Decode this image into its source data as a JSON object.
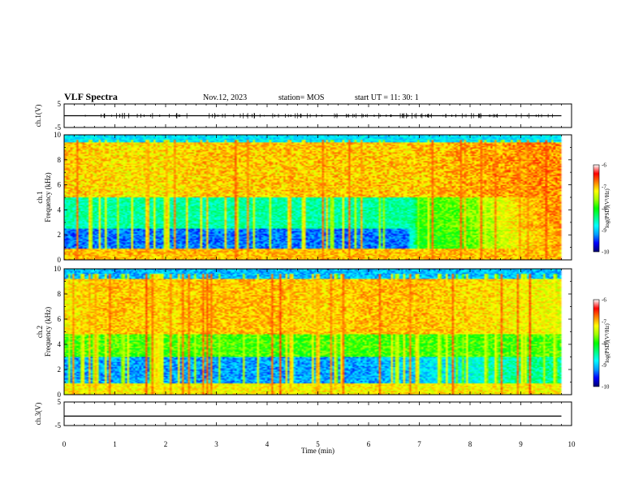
{
  "header": {
    "title": "VLF Spectra",
    "date": "Nov.12, 2023",
    "station": "station= MOS",
    "start": "start  UT =   11: 30: 1"
  },
  "colors": {
    "colormap": [
      "#000070",
      "#0000ff",
      "#00a0ff",
      "#00ffff",
      "#00ff80",
      "#00ff00",
      "#a0ff00",
      "#ffff00",
      "#ff8000",
      "#ff0000",
      "#ffffff"
    ]
  },
  "chart_data": [
    {
      "type": "line",
      "panel": "ch.1 waveform",
      "ylabel": "ch.1(V)",
      "ylim": [
        -5,
        5
      ],
      "yticks": [
        "5",
        "-5"
      ],
      "xlim": [
        0,
        10
      ],
      "series": [
        {
          "x": [
            0,
            9.8
          ],
          "values": [
            0,
            0
          ]
        }
      ],
      "grid": false
    },
    {
      "type": "heatmap",
      "panel": "ch.1 spectrogram",
      "ylabel": "ch.1 Frequency (kHz)",
      "ylim": [
        0,
        10
      ],
      "yticks": [
        "0",
        "2",
        "4",
        "6",
        "8",
        "10"
      ],
      "xlim": [
        0,
        10
      ],
      "data_extent_min": 9.8,
      "colorbar": {
        "label": "log(PSD)(V²/Hz)",
        "range": [
          -10,
          -6
        ],
        "ticks": [
          "-6",
          "-7",
          "-8",
          "-9",
          "-10"
        ]
      },
      "time_profile": {
        "x": [
          0,
          1,
          2,
          3,
          4,
          5,
          6,
          6.8,
          7,
          8,
          9,
          9.8
        ],
        "mid_band_logpsd": [
          -8.9,
          -8.9,
          -8.9,
          -8.9,
          -8.9,
          -8.9,
          -8.9,
          -8.9,
          -8.0,
          -7.8,
          -7.2,
          -6.9
        ],
        "upper_band_logpsd": [
          -7.0,
          -7.1,
          -7.1,
          -7.0,
          -7.0,
          -7.0,
          -7.0,
          -7.0,
          -7.0,
          -6.9,
          -6.8,
          -6.8
        ]
      }
    },
    {
      "type": "heatmap",
      "panel": "ch.2 spectrogram",
      "ylabel": "ch.2 Frequency (kHz)",
      "ylim": [
        0,
        10
      ],
      "yticks": [
        "0",
        "2",
        "4",
        "6",
        "8",
        "10"
      ],
      "xlim": [
        0,
        10
      ],
      "data_extent_min": 9.8,
      "colorbar": {
        "label": "log(PSD)(V²/Hz)",
        "range": [
          -10,
          -6
        ],
        "ticks": [
          "-6",
          "-7",
          "-8",
          "-9",
          "-10"
        ]
      },
      "time_profile": {
        "x": [
          0,
          1,
          2,
          3,
          4,
          5,
          6,
          7,
          8,
          9,
          9.8
        ],
        "mid_band_logpsd": [
          -7.2,
          -7.0,
          -7.1,
          -7.0,
          -7.0,
          -7.1,
          -7.0,
          -7.0,
          -7.1,
          -7.2,
          -7.3
        ],
        "low_band_logpsd": [
          -9.0,
          -9.0,
          -9.0,
          -9.0,
          -9.0,
          -9.0,
          -9.0,
          -8.8,
          -8.6,
          -8.3,
          -8.3
        ]
      }
    },
    {
      "type": "line",
      "panel": "ch.3 waveform",
      "ylabel": "ch.3(V)",
      "ylim": [
        -5,
        5
      ],
      "yticks": [
        "5",
        "-5"
      ],
      "xlim": [
        0,
        10
      ],
      "series": [
        {
          "x": [
            0,
            9.8
          ],
          "values": [
            -1,
            -1
          ]
        }
      ],
      "grid": false
    }
  ],
  "xaxis": {
    "label": "Time  (min)",
    "ticks": [
      "0",
      "1",
      "2",
      "3",
      "4",
      "5",
      "6",
      "7",
      "8",
      "9",
      "10"
    ]
  }
}
